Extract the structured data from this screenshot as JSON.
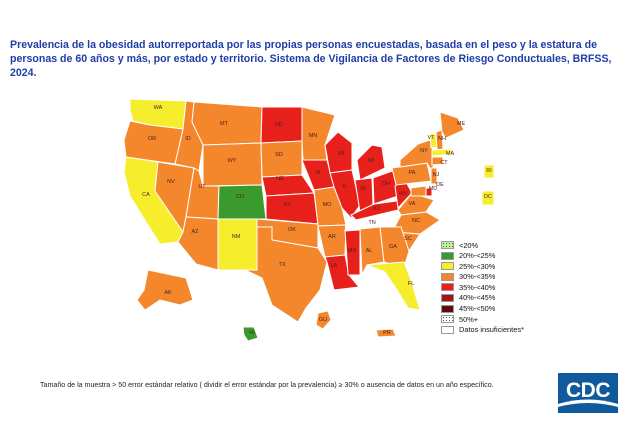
{
  "title": "Prevalencia de la obesidad autorreportada por las propias personas encuestadas, basada en el peso y la estatura de personas de 60 años y más, por estado y territorio. Sistema de Vigilancia de Factores de Riesgo Conductuales, BRFSS, 2024.",
  "legend": [
    {
      "label": "<20%",
      "color": "#c6efa6",
      "pattern": true
    },
    {
      "label": "20%-<25%",
      "color": "#3a9a2e"
    },
    {
      "label": "25%-<30%",
      "color": "#f6ee2c"
    },
    {
      "label": "30%-<35%",
      "color": "#f4862b"
    },
    {
      "label": "35%-<40%",
      "color": "#e8201c"
    },
    {
      "label": "40%-<45%",
      "color": "#a5121a"
    },
    {
      "label": "45%-<50%",
      "color": "#5c0b0f"
    },
    {
      "label": "50%+",
      "color": "#ffffff",
      "pattern": true
    },
    {
      "label": "Datos insuficientes*",
      "color": "#ffffff"
    }
  ],
  "states": [
    {
      "code": "WA",
      "category": "25%-<30%"
    },
    {
      "code": "OR",
      "category": "30%-<35%"
    },
    {
      "code": "CA",
      "category": "25%-<30%"
    },
    {
      "code": "NV",
      "category": "30%-<35%"
    },
    {
      "code": "ID",
      "category": "30%-<35%"
    },
    {
      "code": "MT",
      "category": "30%-<35%"
    },
    {
      "code": "WY",
      "category": "30%-<35%"
    },
    {
      "code": "UT",
      "category": "30%-<35%"
    },
    {
      "code": "CO",
      "category": "20%-<25%"
    },
    {
      "code": "AZ",
      "category": "30%-<35%"
    },
    {
      "code": "NM",
      "category": "25%-<30%"
    },
    {
      "code": "ND",
      "category": "35%-<40%"
    },
    {
      "code": "SD",
      "category": "30%-<35%"
    },
    {
      "code": "NE",
      "category": "35%-<40%"
    },
    {
      "code": "KS",
      "category": "35%-<40%"
    },
    {
      "code": "OK",
      "category": "30%-<35%"
    },
    {
      "code": "TX",
      "category": "30%-<35%"
    },
    {
      "code": "MN",
      "category": "30%-<35%"
    },
    {
      "code": "IA",
      "category": "35%-<40%"
    },
    {
      "code": "MO",
      "category": "30%-<35%"
    },
    {
      "code": "AR",
      "category": "30%-<35%"
    },
    {
      "code": "LA",
      "category": "35%-<40%"
    },
    {
      "code": "WI",
      "category": "35%-<40%"
    },
    {
      "code": "IL",
      "category": "35%-<40%"
    },
    {
      "code": "MS",
      "category": "35%-<40%"
    },
    {
      "code": "MI",
      "category": "35%-<40%"
    },
    {
      "code": "IN",
      "category": "35%-<40%"
    },
    {
      "code": "KY",
      "category": "35%-<40%"
    },
    {
      "code": "TN",
      "category": "Datos insuficientes*"
    },
    {
      "code": "AL",
      "category": "30%-<35%"
    },
    {
      "code": "OH",
      "category": "35%-<40%"
    },
    {
      "code": "WV",
      "category": "35%-<40%"
    },
    {
      "code": "VA",
      "category": "30%-<35%"
    },
    {
      "code": "NC",
      "category": "30%-<35%"
    },
    {
      "code": "SC",
      "category": "30%-<35%"
    },
    {
      "code": "GA",
      "category": "30%-<35%"
    },
    {
      "code": "FL",
      "category": "25%-<30%"
    },
    {
      "code": "PA",
      "category": "30%-<35%"
    },
    {
      "code": "NY",
      "category": "30%-<35%"
    },
    {
      "code": "VT",
      "category": "25%-<30%"
    },
    {
      "code": "NH",
      "category": "30%-<35%"
    },
    {
      "code": "ME",
      "category": "30%-<35%"
    },
    {
      "code": "MA",
      "category": "25%-<30%"
    },
    {
      "code": "CT",
      "category": "30%-<35%"
    },
    {
      "code": "NJ",
      "category": "30%-<35%"
    },
    {
      "code": "DE",
      "category": "35%-<40%"
    },
    {
      "code": "MD",
      "category": "30%-<35%"
    },
    {
      "code": "RI",
      "category": "25%-<30%"
    },
    {
      "code": "DC",
      "category": "25%-<30%"
    },
    {
      "code": "AK",
      "category": "30%-<35%"
    },
    {
      "code": "HI",
      "category": "20%-<25%"
    },
    {
      "code": "GU",
      "category": "30%-<35%"
    },
    {
      "code": "PR",
      "category": "30%-<35%"
    }
  ],
  "footnote": "Tamaño de la muestra > 50 error estándar relativo ( dividir el error estándar por la prevalencia) ≥ 30% o ausencia de datos en un año específico.",
  "logo_text": "CDC"
}
